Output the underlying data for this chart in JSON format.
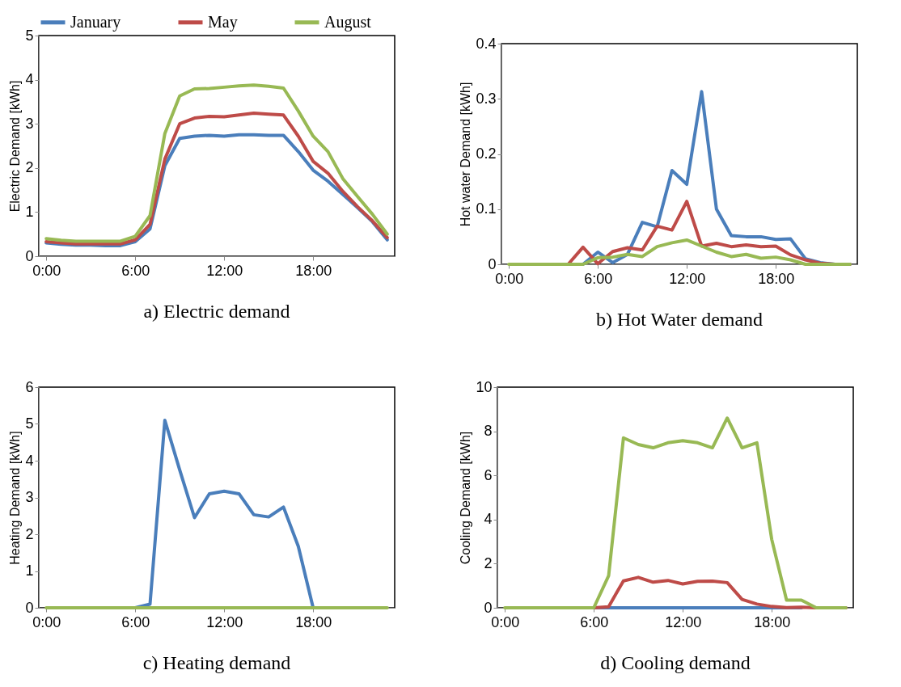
{
  "chart_data": [
    {
      "type": "line",
      "title": "a) Electric demand",
      "ylabel": "Electric Demand [kWh]",
      "legend": "top",
      "categories": [
        "0:00",
        null,
        null,
        null,
        null,
        null,
        "6:00",
        null,
        null,
        null,
        null,
        null,
        "12:00",
        null,
        null,
        null,
        null,
        null,
        "18:00",
        null,
        null,
        null,
        null,
        null
      ],
      "ylim": [
        0,
        5
      ],
      "yticks": [
        0,
        1,
        2,
        3,
        4,
        5
      ],
      "series": [
        {
          "name": "January",
          "color": "#4a7ebb",
          "values": [
            0.3,
            0.27,
            0.25,
            0.25,
            0.24,
            0.24,
            0.33,
            0.62,
            2.05,
            2.67,
            2.72,
            2.74,
            2.72,
            2.75,
            2.75,
            2.74,
            2.74,
            2.37,
            1.95,
            1.7,
            1.4,
            1.1,
            0.78,
            0.37
          ]
        },
        {
          "name": "May",
          "color": "#be4b48",
          "values": [
            0.33,
            0.3,
            0.28,
            0.28,
            0.28,
            0.28,
            0.37,
            0.72,
            2.2,
            3.0,
            3.13,
            3.17,
            3.16,
            3.2,
            3.24,
            3.22,
            3.2,
            2.72,
            2.15,
            1.88,
            1.47,
            1.12,
            0.8,
            0.42
          ]
        },
        {
          "name": "August",
          "color": "#98b954",
          "values": [
            0.4,
            0.36,
            0.34,
            0.34,
            0.34,
            0.34,
            0.45,
            0.92,
            2.78,
            3.63,
            3.79,
            3.8,
            3.83,
            3.86,
            3.88,
            3.85,
            3.81,
            3.29,
            2.72,
            2.37,
            1.76,
            1.35,
            0.95,
            0.5
          ]
        }
      ]
    },
    {
      "type": "line",
      "title": "b) Hot Water demand",
      "ylabel": "Hot water Demand [kWh]",
      "categories": [
        "0:00",
        null,
        null,
        null,
        null,
        null,
        "6:00",
        null,
        null,
        null,
        null,
        null,
        "12:00",
        null,
        null,
        null,
        null,
        null,
        "18:00",
        null,
        null,
        null,
        null,
        null
      ],
      "ylim": [
        0,
        0.4
      ],
      "yticks": [
        0,
        0.1,
        0.2,
        0.3,
        0.4
      ],
      "series": [
        {
          "color": "#4a7ebb",
          "values": [
            null,
            null,
            null,
            null,
            0,
            0,
            0.022,
            0.003,
            0.018,
            0.076,
            0.068,
            0.17,
            0.145,
            0.313,
            0.1,
            0.052,
            0.05,
            0.05,
            0.045,
            0.046,
            0.01,
            0.003,
            0,
            0
          ]
        },
        {
          "color": "#be4b48",
          "values": [
            null,
            null,
            null,
            0,
            0,
            0.031,
            0.001,
            0.023,
            0.03,
            0.026,
            0.069,
            0.062,
            0.114,
            0.033,
            0.038,
            0.032,
            0.035,
            0.032,
            0.033,
            0.017,
            0.008,
            0.002,
            0,
            0
          ]
        },
        {
          "color": "#98b954",
          "values": [
            0,
            0,
            0,
            0,
            0,
            0,
            0.012,
            0.013,
            0.018,
            0.014,
            0.032,
            0.039,
            0.044,
            0.033,
            0.022,
            0.014,
            0.018,
            0.011,
            0.013,
            0.008,
            0,
            0,
            0,
            0
          ]
        }
      ]
    },
    {
      "type": "line",
      "title": "c) Heating demand",
      "ylabel": "Heating Demand [kWh]",
      "categories": [
        "0:00",
        null,
        null,
        null,
        null,
        null,
        "6:00",
        null,
        null,
        null,
        null,
        null,
        "12:00",
        null,
        null,
        null,
        null,
        null,
        "18:00",
        null,
        null,
        null,
        null,
        null
      ],
      "ylim": [
        0,
        6
      ],
      "yticks": [
        0,
        1,
        2,
        3,
        4,
        5,
        6
      ],
      "series": [
        {
          "color": "#4a7ebb",
          "values": [
            null,
            null,
            null,
            null,
            0,
            0,
            0,
            0.1,
            5.1,
            3.75,
            2.45,
            3.1,
            3.17,
            3.1,
            2.53,
            2.47,
            2.74,
            1.67,
            0,
            0,
            null,
            null,
            null,
            null
          ]
        },
        {
          "color": "#be4b48",
          "values": [
            null,
            null,
            null,
            null,
            null,
            null,
            null,
            null,
            null,
            null,
            null,
            null,
            null,
            null,
            null,
            null,
            null,
            null,
            null,
            null,
            null,
            null,
            null,
            null
          ]
        },
        {
          "color": "#98b954",
          "values": [
            0,
            0,
            0,
            0,
            0,
            0,
            0,
            0,
            0,
            0,
            0,
            0,
            0,
            0,
            0,
            0,
            0,
            0,
            0,
            0,
            0,
            0,
            0,
            0
          ]
        }
      ]
    },
    {
      "type": "line",
      "title": "d) Cooling demand",
      "ylabel": "Cooling Demand [kWh]",
      "categories": [
        "0:00",
        null,
        null,
        null,
        null,
        null,
        "6:00",
        null,
        null,
        null,
        null,
        null,
        "12:00",
        null,
        null,
        null,
        null,
        null,
        "18:00",
        null,
        null,
        null,
        null,
        null
      ],
      "ylim": [
        0,
        10
      ],
      "yticks": [
        0,
        2,
        4,
        6,
        8,
        10
      ],
      "series": [
        {
          "color": "#4a7ebb",
          "values": [
            null,
            null,
            null,
            null,
            0,
            0,
            0,
            0,
            0,
            0,
            0,
            0,
            0,
            0,
            0,
            0,
            0,
            0,
            0,
            0,
            0,
            null,
            null,
            null
          ]
        },
        {
          "color": "#be4b48",
          "values": [
            null,
            null,
            null,
            null,
            0,
            0,
            0,
            0.05,
            1.22,
            1.38,
            1.16,
            1.24,
            1.08,
            1.2,
            1.21,
            1.14,
            0.38,
            0.17,
            0.06,
            0.01,
            0.03,
            0,
            0,
            0
          ]
        },
        {
          "color": "#98b954",
          "values": [
            0,
            0,
            0,
            0,
            0,
            0,
            0,
            1.45,
            7.7,
            7.4,
            7.25,
            7.48,
            7.57,
            7.48,
            7.25,
            8.6,
            7.25,
            7.48,
            3.1,
            0.35,
            0.35,
            0,
            0,
            0
          ]
        }
      ]
    }
  ]
}
